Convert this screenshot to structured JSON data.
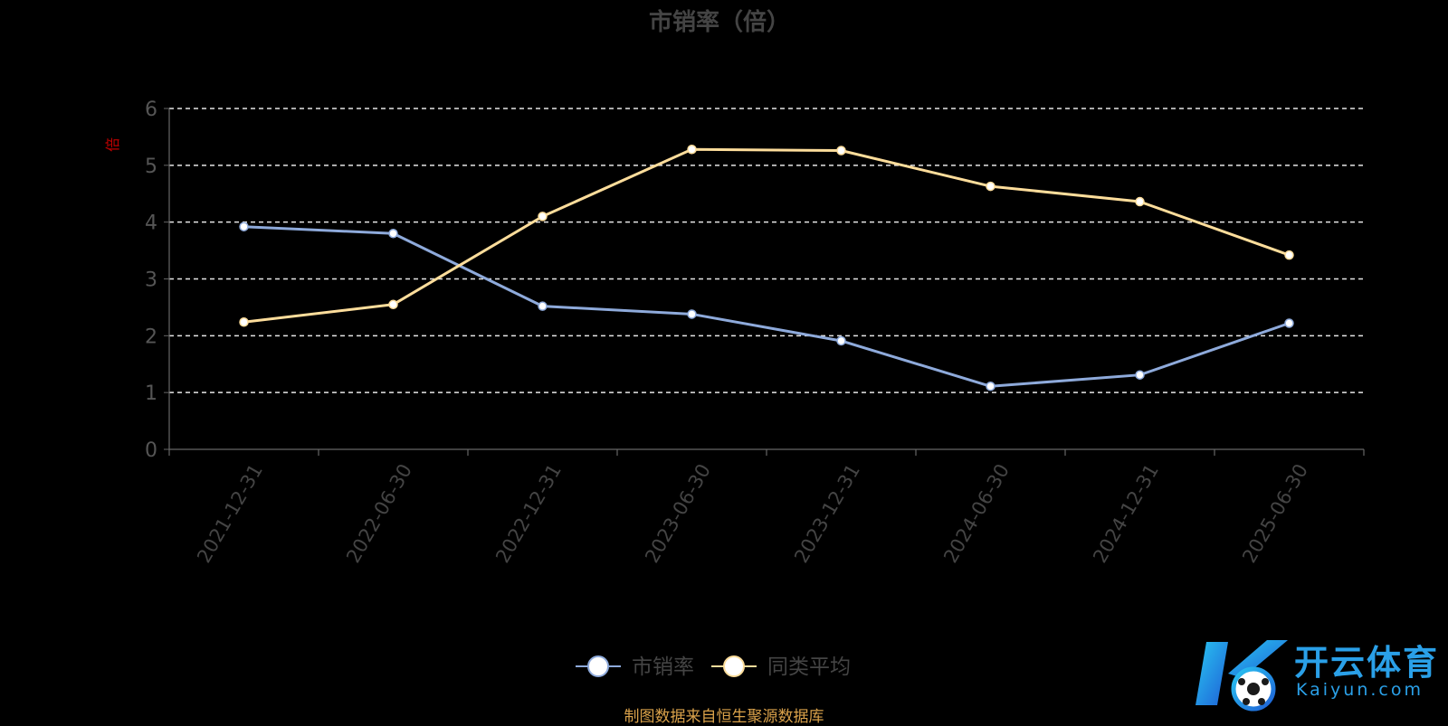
{
  "chart_data": {
    "type": "line",
    "title": "市销率（倍）",
    "ylabel": "倍",
    "xlabel": "",
    "categories": [
      "2021-12-31",
      "2022-06-30",
      "2022-12-31",
      "2023-06-30",
      "2023-12-31",
      "2024-06-30",
      "2024-12-31",
      "2025-06-30"
    ],
    "ylim": [
      0,
      6
    ],
    "yticks": [
      0,
      1,
      2,
      3,
      4,
      5,
      6
    ],
    "grid": true,
    "legend_position": "bottom-center",
    "series": [
      {
        "name": "市销率",
        "color": "#8eaadb",
        "values": [
          3.92,
          3.8,
          2.52,
          2.38,
          1.91,
          1.11,
          1.31,
          2.22
        ]
      },
      {
        "name": "同类平均",
        "color": "#fddd9b",
        "values": [
          2.24,
          2.55,
          4.1,
          5.28,
          5.26,
          4.63,
          4.36,
          3.42
        ]
      }
    ]
  },
  "footer": {
    "source": "制图数据来自恒生聚源数据库"
  },
  "watermark": {
    "text": "开云体育",
    "sub": "Kaiyun.com"
  }
}
